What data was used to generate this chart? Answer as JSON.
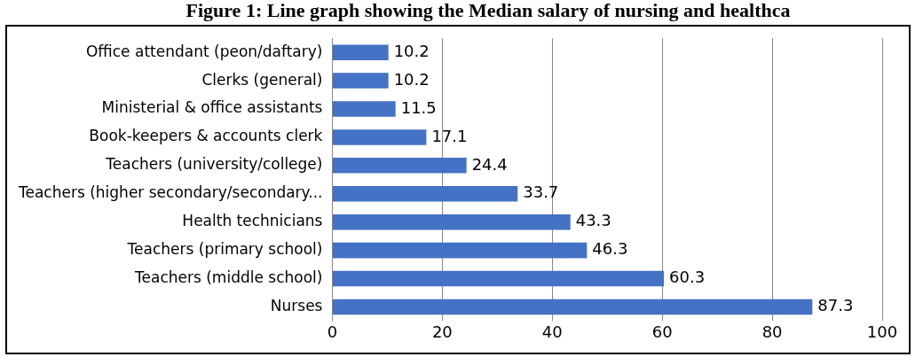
{
  "chart_data": {
    "type": "bar",
    "orientation": "horizontal",
    "title": "Figure 1: Line graph showing the Median salary of nursing and healthca",
    "categories": [
      "Office attendant (peon/daftary)",
      "Clerks (general)",
      "Ministerial & office assistants",
      "Book-keepers & accounts clerk",
      "Teachers (university/college)",
      "Teachers (higher secondary/secondary...",
      "Health technicians",
      "Teachers (primary school)",
      "Teachers (middle school)",
      "Nurses"
    ],
    "values": [
      10.2,
      10.2,
      11.5,
      17.1,
      24.4,
      33.7,
      43.3,
      46.3,
      60.3,
      87.3
    ],
    "color": "#4472c4",
    "xlim": [
      0,
      100
    ],
    "xticks": [
      0,
      20,
      40,
      60,
      80,
      100
    ],
    "grid": "x",
    "data_labels": true
  }
}
